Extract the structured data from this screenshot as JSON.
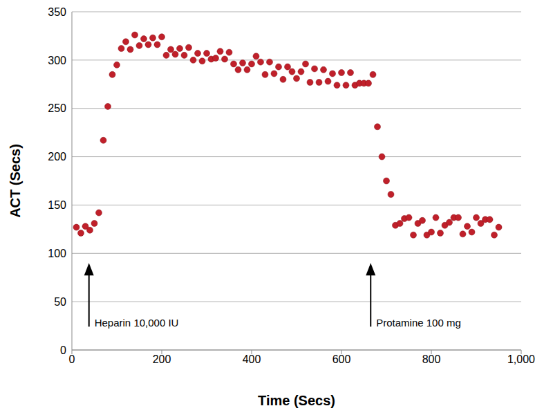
{
  "chart_data": {
    "type": "scatter",
    "x_label": "Time (Secs)",
    "y_label": "ACT (Secs)",
    "x": [
      10,
      20,
      30,
      40,
      50,
      60,
      70,
      80,
      90,
      100,
      110,
      120,
      130,
      140,
      150,
      160,
      170,
      180,
      190,
      200,
      210,
      220,
      230,
      240,
      250,
      260,
      270,
      280,
      290,
      300,
      310,
      320,
      330,
      340,
      350,
      360,
      370,
      380,
      390,
      400,
      410,
      420,
      430,
      440,
      450,
      460,
      470,
      480,
      490,
      500,
      510,
      520,
      530,
      540,
      550,
      560,
      570,
      580,
      590,
      600,
      610,
      620,
      630,
      640,
      650,
      660,
      670,
      680,
      690,
      700,
      710,
      720,
      730,
      740,
      750,
      760,
      770,
      780,
      790,
      800,
      810,
      820,
      830,
      840,
      850,
      860,
      870,
      880,
      890,
      900,
      910,
      920,
      930,
      940,
      950
    ],
    "values": [
      127,
      121,
      128,
      124,
      131,
      142,
      217,
      252,
      285,
      295,
      312,
      319,
      311,
      326,
      315,
      322,
      316,
      323,
      316,
      324,
      305,
      311,
      306,
      312,
      305,
      313,
      300,
      307,
      299,
      307,
      301,
      302,
      309,
      301,
      308,
      296,
      290,
      297,
      290,
      296,
      304,
      298,
      285,
      298,
      286,
      293,
      280,
      293,
      288,
      281,
      288,
      296,
      277,
      291,
      277,
      290,
      278,
      286,
      274,
      287,
      274,
      287,
      274,
      276,
      276,
      276,
      285,
      231,
      200,
      175,
      161,
      129,
      131,
      136,
      137,
      119,
      131,
      134,
      119,
      122,
      137,
      121,
      129,
      132,
      137,
      137,
      120,
      128,
      122,
      137,
      131,
      135,
      135,
      119,
      127
    ],
    "color": "#c0202a",
    "marker": "circle",
    "xlim": [
      0,
      1000
    ],
    "xticks": [
      0,
      200,
      400,
      600,
      800,
      {
        "value": 1000,
        "label": "1,000"
      }
    ],
    "ylim": [
      0,
      350
    ],
    "yticks": [
      0,
      50,
      100,
      150,
      200,
      250,
      300,
      350
    ],
    "grid": true,
    "annotations": [
      {
        "text": "Heparin 10,000 IU",
        "x": 38,
        "y": 90
      },
      {
        "text": "Protamine 100 mg",
        "x": 665,
        "y": 90
      }
    ]
  }
}
